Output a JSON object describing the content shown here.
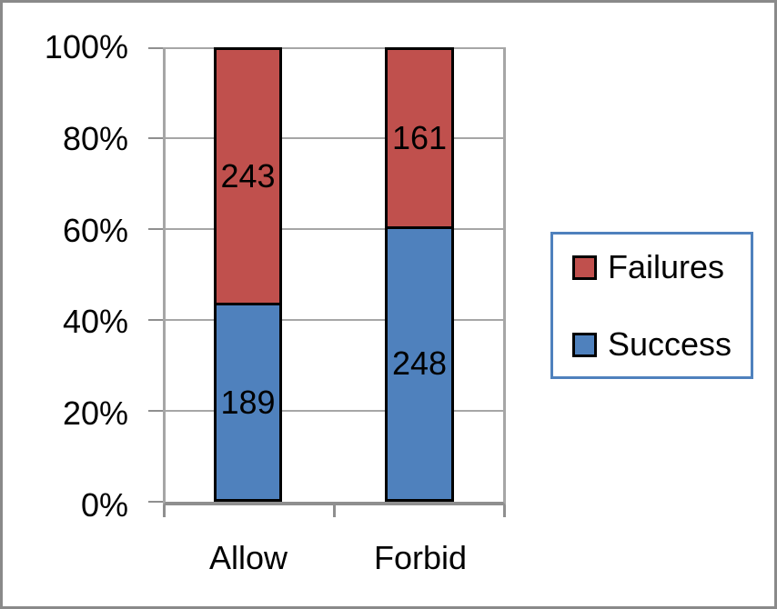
{
  "chart_data": {
    "type": "bar",
    "variant": "stacked-100-percent",
    "categories": [
      "Allow",
      "Forbid"
    ],
    "series": [
      {
        "name": "Success",
        "color": "#4F81BD",
        "values": [
          189,
          248
        ]
      },
      {
        "name": "Failures",
        "color": "#C0504D",
        "values": [
          243,
          161
        ]
      }
    ],
    "ytick_labels_top_to_bottom": [
      "100%",
      "80%",
      "60%",
      "40%",
      "20%",
      "0%"
    ],
    "ylim": [
      0,
      100
    ],
    "grid": true,
    "legend_position": "right",
    "legend_order_top_to_bottom": [
      "Failures",
      "Success"
    ],
    "colors": {
      "legend_border": "#4F81BD",
      "bar_outline": "#000000",
      "gridline": "#A6A6A6",
      "axis": "#8F8F8F",
      "outer_border": "#8A8A8A",
      "background": "#FFFFFF",
      "text": "#000000"
    }
  }
}
